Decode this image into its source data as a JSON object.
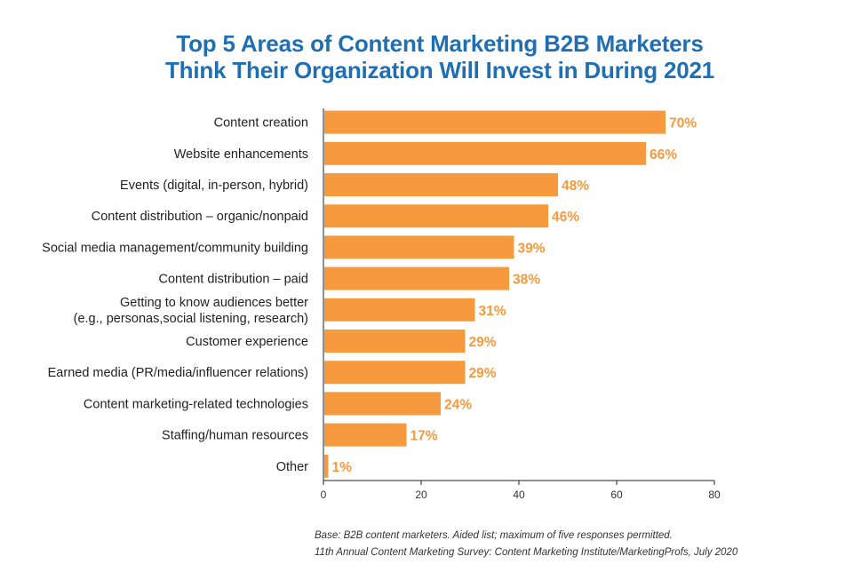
{
  "chart_data": {
    "type": "bar",
    "orientation": "horizontal",
    "title_lines": [
      "Top 5 Areas of Content Marketing B2B Marketers",
      "Think Their Organization Will Invest in During 2021"
    ],
    "categories": [
      [
        "Content creation"
      ],
      [
        "Website enhancements"
      ],
      [
        "Events (digital, in-person, hybrid)"
      ],
      [
        "Content distribution – organic/nonpaid"
      ],
      [
        "Social media management/community building"
      ],
      [
        "Content distribution – paid"
      ],
      [
        "Getting to know audiences better",
        "(e.g., personas,social listening, research)"
      ],
      [
        "Customer experience"
      ],
      [
        "Earned media (PR/media/influencer relations)"
      ],
      [
        "Content marketing-related technologies"
      ],
      [
        "Staffing/human resources"
      ],
      [
        "Other"
      ]
    ],
    "values": [
      70,
      66,
      48,
      46,
      39,
      38,
      31,
      29,
      29,
      24,
      17,
      1
    ],
    "value_labels": [
      "70%",
      "66%",
      "48%",
      "46%",
      "39%",
      "38%",
      "31%",
      "29%",
      "29%",
      "24%",
      "17%",
      "1%"
    ],
    "x_ticks": [
      "0",
      "20",
      "40",
      "60",
      "80"
    ],
    "xlim": [
      0,
      80
    ],
    "grid": false,
    "colors": {
      "bar": "#f7993d",
      "value_label": "#f7993d",
      "title": "#1f6fb2"
    }
  },
  "footnote": {
    "line1": "Base: B2B content marketers. Aided list; maximum of five responses permitted.",
    "line2": "11th Annual Content Marketing Survey: Content Marketing Institute/MarketingProfs, July 2020"
  }
}
